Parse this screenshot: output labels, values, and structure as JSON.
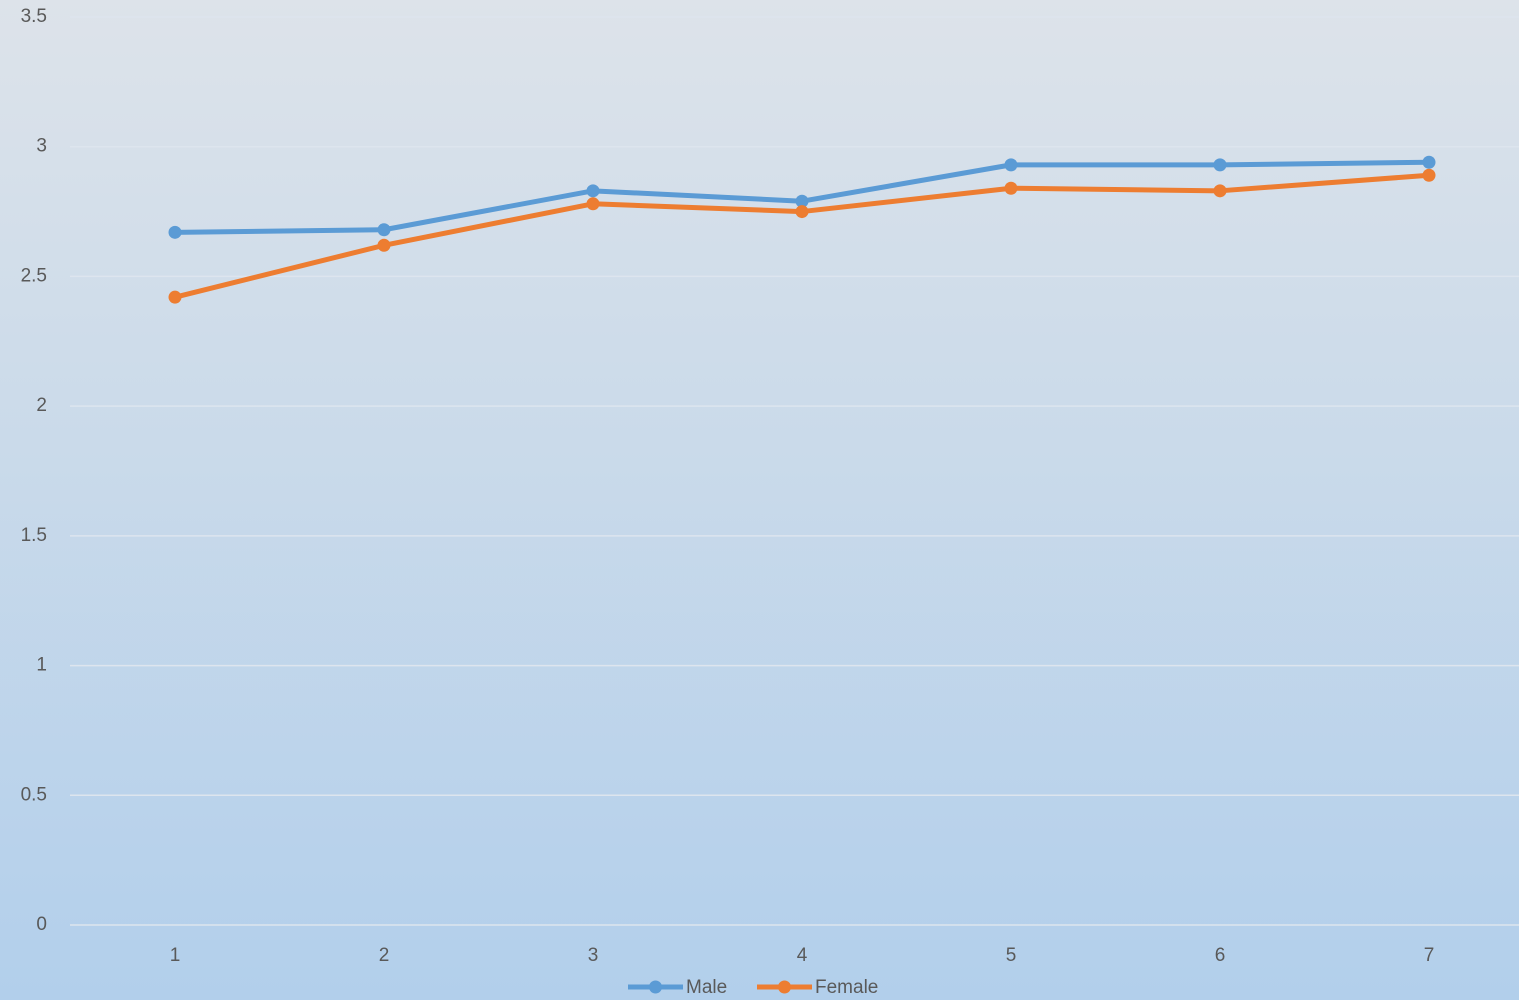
{
  "chart_data": {
    "type": "line",
    "categories": [
      "1",
      "2",
      "3",
      "4",
      "5",
      "6",
      "7"
    ],
    "series": [
      {
        "name": "Male",
        "color": "#5b9bd5",
        "values": [
          2.67,
          2.68,
          2.83,
          2.79,
          2.93,
          2.93,
          2.94
        ]
      },
      {
        "name": "Female",
        "color": "#ed7d31",
        "values": [
          2.42,
          2.62,
          2.78,
          2.75,
          2.84,
          2.83,
          2.89
        ]
      }
    ],
    "ylim": [
      0,
      3.5
    ],
    "yticks": [
      0,
      0.5,
      1,
      1.5,
      2,
      2.5,
      3,
      3.5
    ],
    "grid": true,
    "legend": "bottom"
  }
}
